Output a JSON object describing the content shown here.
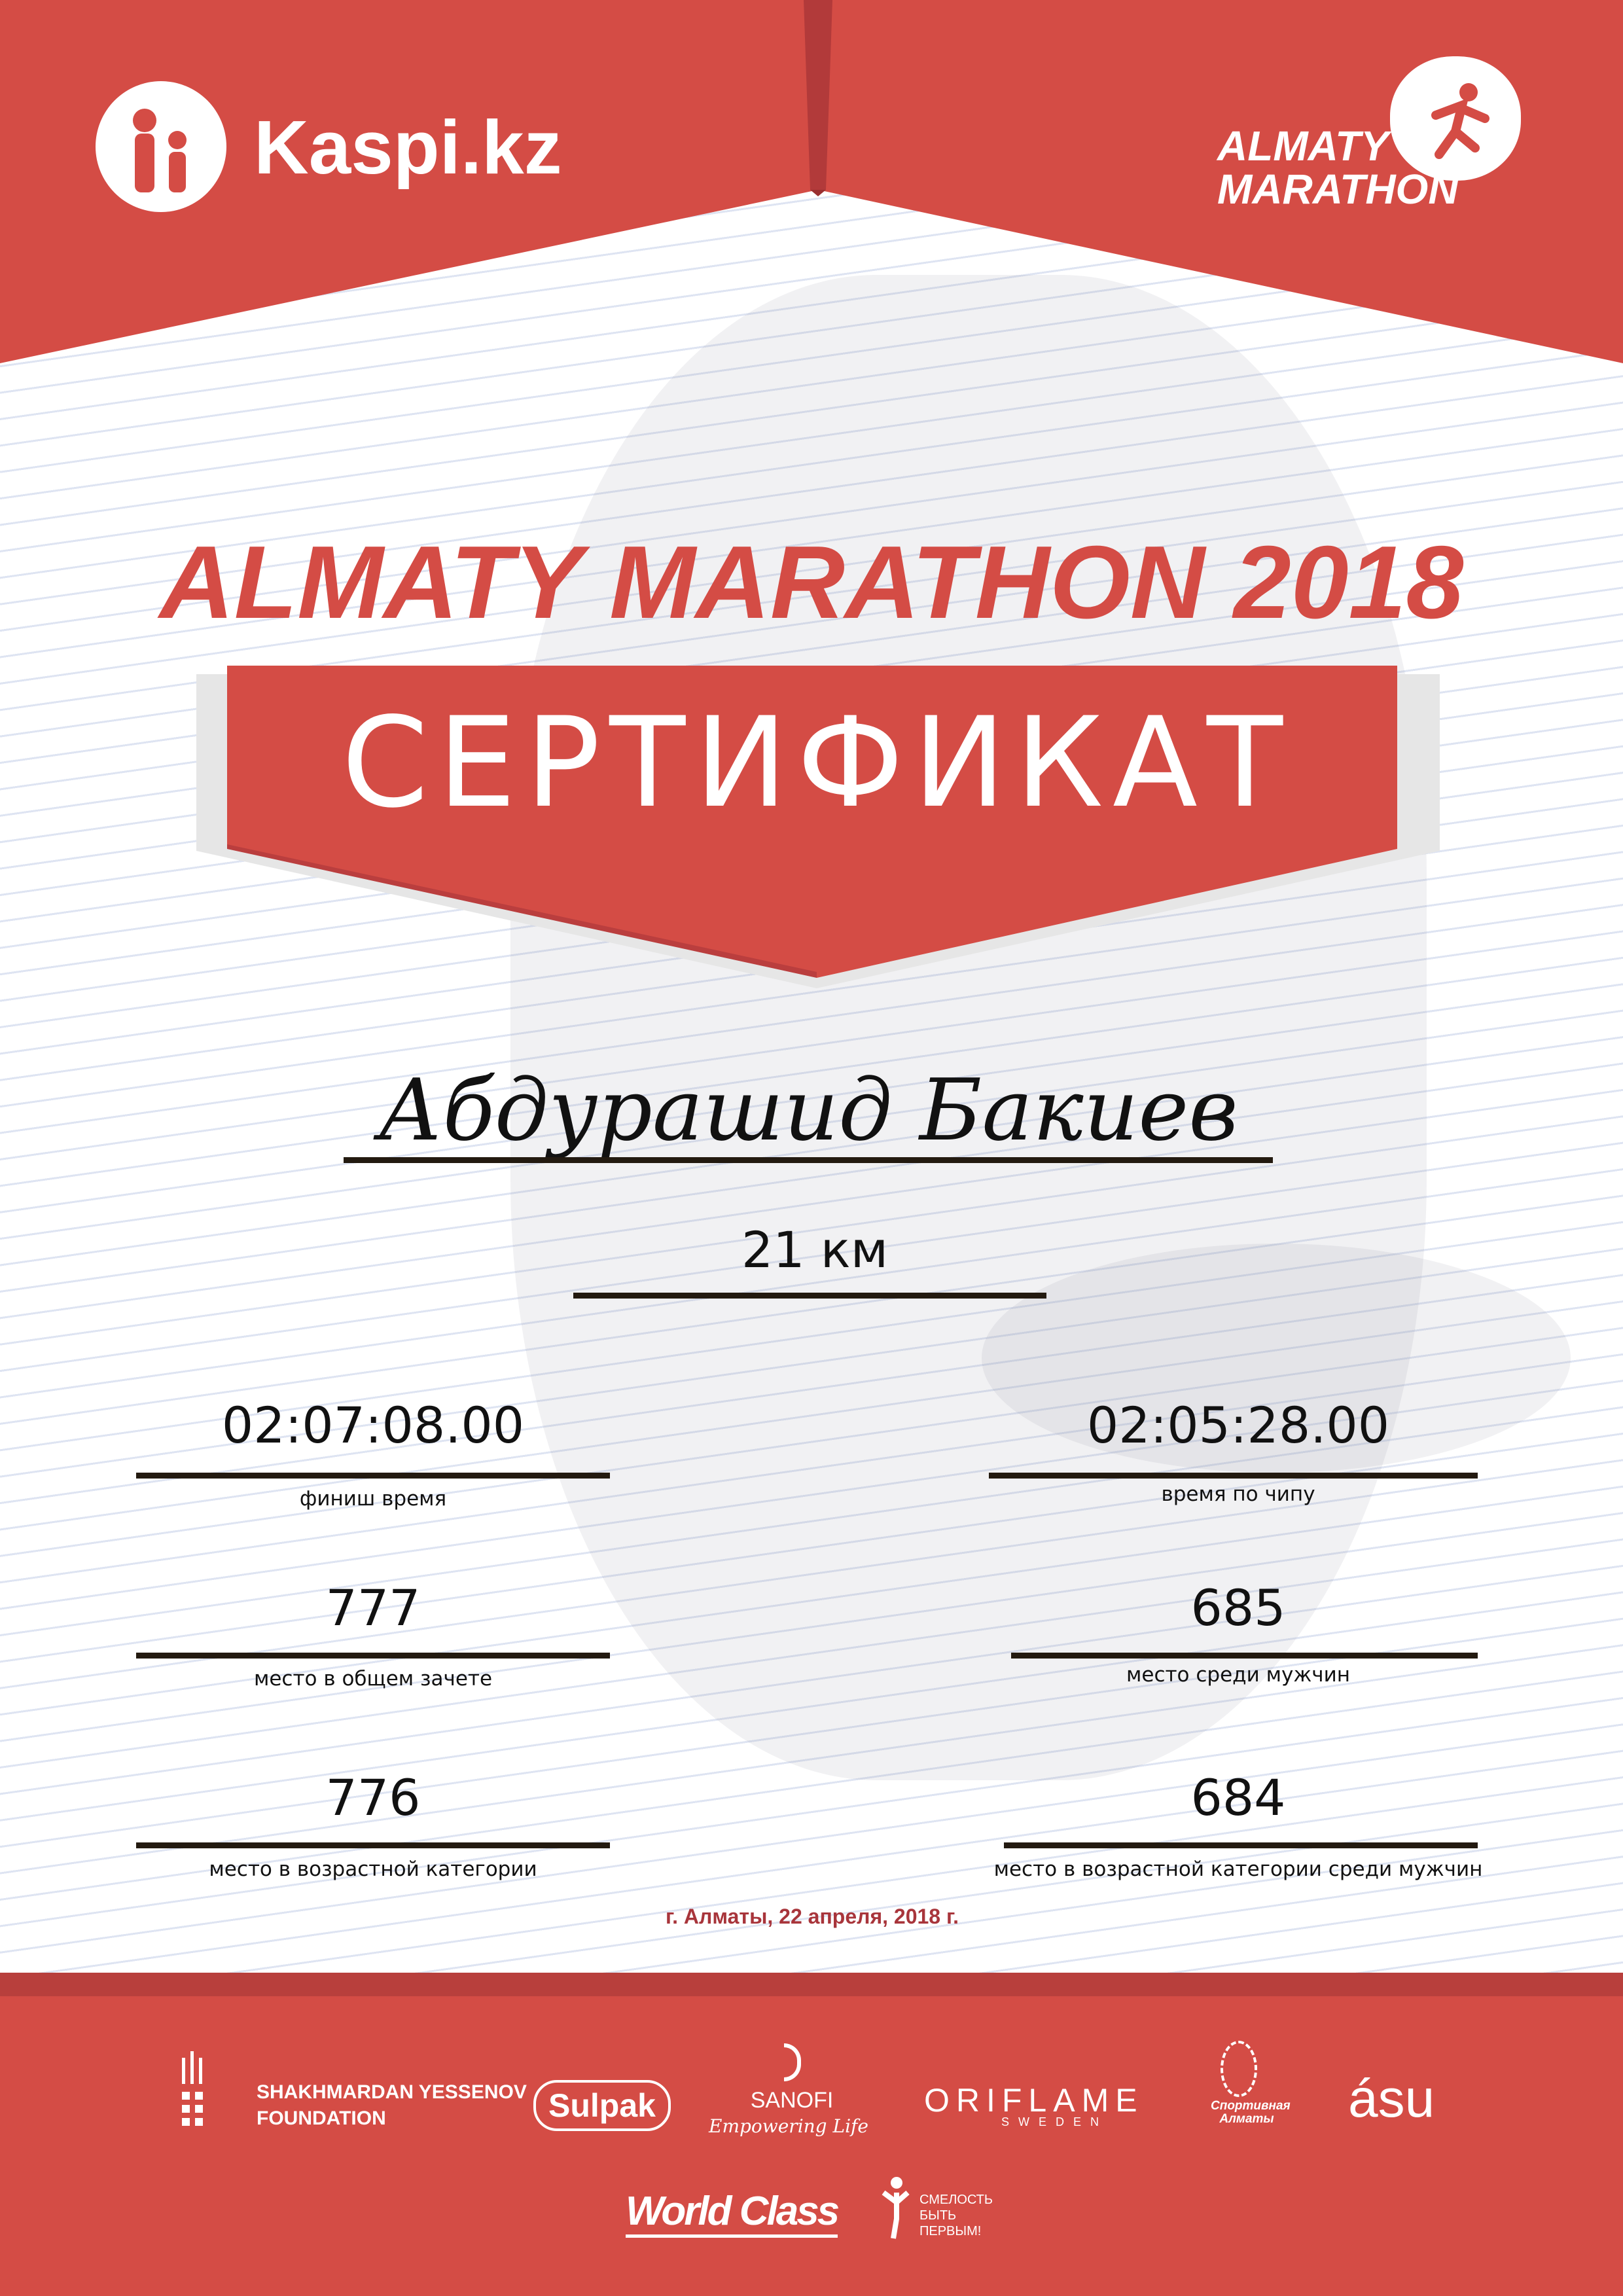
{
  "header": {
    "sponsor_logo": "Kaspi.kz",
    "event_logo_line1": "ALMATY",
    "event_logo_line2": "MARATHON"
  },
  "title": "ALMATY MARATHON 2018",
  "certificate_label": "СЕРТИФИКАТ",
  "participant_name": "Абдурашид Бакиев",
  "distance": "21 км",
  "results": {
    "finish_time": {
      "value": "02:07:08.00",
      "label": "финиш время"
    },
    "chip_time": {
      "value": "02:05:28.00",
      "label": "время по чипу"
    },
    "overall_place": {
      "value": "777",
      "label": "место в общем зачете"
    },
    "gender_place": {
      "value": "685",
      "label": "место среди мужчин"
    },
    "age_place": {
      "value": "776",
      "label": "место в возрастной категории"
    },
    "age_gender_place": {
      "value": "684",
      "label": "место в возрастной категории среди мужчин"
    }
  },
  "date_line": "г. Алматы, 22 апреля, 2018 г.",
  "sponsors": {
    "yessenov": [
      "SHAKHMARDAN YESSENOV",
      "FOUNDATION"
    ],
    "sulpak": "Sulpak",
    "sanofi": "SANOFI",
    "sanofi_tagline": "Empowering Life",
    "oriflame": "ORIFLAME",
    "oriflame_sub": "SWEDEN",
    "sport_almaty": "Спортивная Алматы",
    "asu": "ásu",
    "worldclass": "World Class",
    "fund": [
      "СМЕЛОСТЬ",
      "БЫТЬ",
      "ПЕРВЫМ!"
    ]
  },
  "colors": {
    "brand_red": "#d44c45",
    "dark_red": "#a8353b"
  }
}
